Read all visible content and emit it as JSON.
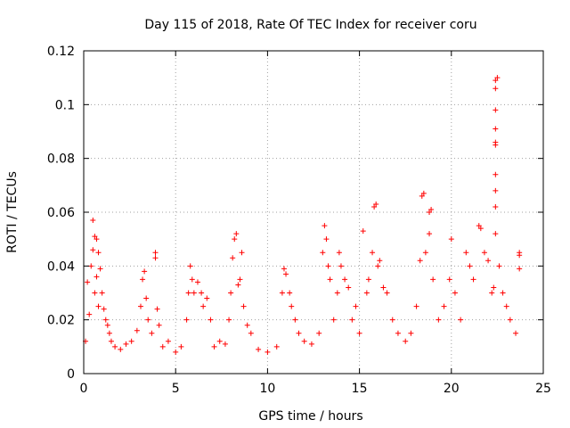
{
  "chart_data": {
    "type": "scatter",
    "title": "Day 115 of 2018, Rate Of TEC Index for receiver coru",
    "xlabel": "GPS time / hours",
    "ylabel": "ROTI / TECUs",
    "xlim": [
      0,
      25
    ],
    "ylim": [
      0,
      0.12
    ],
    "xticks": [
      0,
      5,
      10,
      15,
      20,
      25
    ],
    "yticks": [
      0,
      0.02,
      0.04,
      0.06,
      0.08,
      0.1,
      0.12
    ],
    "xtick_labels": [
      "0",
      "5",
      "10",
      "15",
      "20",
      "25"
    ],
    "ytick_labels": [
      "0",
      "0.02",
      "0.04",
      "0.06",
      "0.08",
      "0.1",
      "0.12"
    ],
    "grid": true,
    "marker": "+",
    "series": [
      {
        "name": "ROTI",
        "color": "#ff0000",
        "points": [
          [
            0.1,
            0.012
          ],
          [
            0.2,
            0.034
          ],
          [
            0.3,
            0.022
          ],
          [
            0.4,
            0.04
          ],
          [
            0.5,
            0.046
          ],
          [
            0.5,
            0.057
          ],
          [
            0.6,
            0.051
          ],
          [
            0.6,
            0.03
          ],
          [
            0.7,
            0.036
          ],
          [
            0.7,
            0.05
          ],
          [
            0.8,
            0.045
          ],
          [
            0.8,
            0.025
          ],
          [
            0.9,
            0.039
          ],
          [
            1.0,
            0.03
          ],
          [
            1.1,
            0.024
          ],
          [
            1.2,
            0.02
          ],
          [
            1.3,
            0.018
          ],
          [
            1.4,
            0.015
          ],
          [
            1.5,
            0.012
          ],
          [
            1.7,
            0.01
          ],
          [
            2.0,
            0.009
          ],
          [
            2.3,
            0.011
          ],
          [
            2.6,
            0.012
          ],
          [
            2.9,
            0.016
          ],
          [
            3.1,
            0.025
          ],
          [
            3.2,
            0.035
          ],
          [
            3.3,
            0.038
          ],
          [
            3.4,
            0.028
          ],
          [
            3.5,
            0.02
          ],
          [
            3.7,
            0.015
          ],
          [
            3.9,
            0.045
          ],
          [
            3.9,
            0.043
          ],
          [
            4.0,
            0.024
          ],
          [
            4.1,
            0.018
          ],
          [
            4.3,
            0.01
          ],
          [
            4.6,
            0.012
          ],
          [
            5.0,
            0.008
          ],
          [
            5.3,
            0.01
          ],
          [
            5.6,
            0.02
          ],
          [
            5.7,
            0.03
          ],
          [
            5.8,
            0.04
          ],
          [
            5.9,
            0.035
          ],
          [
            6.0,
            0.03
          ],
          [
            6.2,
            0.034
          ],
          [
            6.4,
            0.03
          ],
          [
            6.5,
            0.025
          ],
          [
            6.7,
            0.028
          ],
          [
            6.9,
            0.02
          ],
          [
            7.1,
            0.01
          ],
          [
            7.4,
            0.012
          ],
          [
            7.7,
            0.011
          ],
          [
            7.9,
            0.02
          ],
          [
            8.0,
            0.03
          ],
          [
            8.1,
            0.043
          ],
          [
            8.2,
            0.05
          ],
          [
            8.3,
            0.052
          ],
          [
            8.4,
            0.033
          ],
          [
            8.5,
            0.035
          ],
          [
            8.6,
            0.045
          ],
          [
            8.7,
            0.025
          ],
          [
            8.9,
            0.018
          ],
          [
            9.1,
            0.015
          ],
          [
            9.5,
            0.009
          ],
          [
            10.0,
            0.008
          ],
          [
            10.5,
            0.01
          ],
          [
            10.8,
            0.03
          ],
          [
            10.9,
            0.039
          ],
          [
            11.0,
            0.037
          ],
          [
            11.2,
            0.03
          ],
          [
            11.3,
            0.025
          ],
          [
            11.5,
            0.02
          ],
          [
            11.7,
            0.015
          ],
          [
            12.0,
            0.012
          ],
          [
            12.4,
            0.011
          ],
          [
            12.8,
            0.015
          ],
          [
            13.0,
            0.045
          ],
          [
            13.1,
            0.055
          ],
          [
            13.2,
            0.05
          ],
          [
            13.3,
            0.04
          ],
          [
            13.4,
            0.035
          ],
          [
            13.6,
            0.02
          ],
          [
            13.8,
            0.03
          ],
          [
            13.9,
            0.045
          ],
          [
            14.0,
            0.04
          ],
          [
            14.2,
            0.035
          ],
          [
            14.4,
            0.032
          ],
          [
            14.6,
            0.02
          ],
          [
            14.8,
            0.025
          ],
          [
            15.0,
            0.015
          ],
          [
            15.2,
            0.053
          ],
          [
            15.4,
            0.03
          ],
          [
            15.5,
            0.035
          ],
          [
            15.7,
            0.045
          ],
          [
            15.8,
            0.062
          ],
          [
            15.9,
            0.063
          ],
          [
            16.0,
            0.04
          ],
          [
            16.1,
            0.042
          ],
          [
            16.3,
            0.032
          ],
          [
            16.5,
            0.03
          ],
          [
            16.8,
            0.02
          ],
          [
            17.1,
            0.015
          ],
          [
            17.5,
            0.012
          ],
          [
            17.8,
            0.015
          ],
          [
            18.1,
            0.025
          ],
          [
            18.3,
            0.042
          ],
          [
            18.4,
            0.066
          ],
          [
            18.5,
            0.067
          ],
          [
            18.6,
            0.045
          ],
          [
            18.8,
            0.06
          ],
          [
            18.9,
            0.061
          ],
          [
            18.8,
            0.052
          ],
          [
            19.0,
            0.035
          ],
          [
            19.3,
            0.02
          ],
          [
            19.6,
            0.025
          ],
          [
            19.9,
            0.035
          ],
          [
            20.0,
            0.05
          ],
          [
            20.2,
            0.03
          ],
          [
            20.5,
            0.02
          ],
          [
            20.8,
            0.045
          ],
          [
            21.0,
            0.04
          ],
          [
            21.2,
            0.035
          ],
          [
            21.5,
            0.055
          ],
          [
            21.6,
            0.054
          ],
          [
            21.8,
            0.045
          ],
          [
            22.0,
            0.042
          ],
          [
            22.2,
            0.03
          ],
          [
            22.3,
            0.032
          ],
          [
            22.4,
            0.052
          ],
          [
            22.4,
            0.062
          ],
          [
            22.4,
            0.068
          ],
          [
            22.4,
            0.074
          ],
          [
            22.4,
            0.085
          ],
          [
            22.4,
            0.086
          ],
          [
            22.4,
            0.091
          ],
          [
            22.4,
            0.098
          ],
          [
            22.4,
            0.106
          ],
          [
            22.4,
            0.109
          ],
          [
            22.5,
            0.11
          ],
          [
            22.6,
            0.04
          ],
          [
            22.8,
            0.03
          ],
          [
            23.0,
            0.025
          ],
          [
            23.2,
            0.02
          ],
          [
            23.5,
            0.015
          ],
          [
            23.7,
            0.045
          ],
          [
            23.7,
            0.044
          ],
          [
            23.7,
            0.039
          ]
        ]
      }
    ]
  }
}
